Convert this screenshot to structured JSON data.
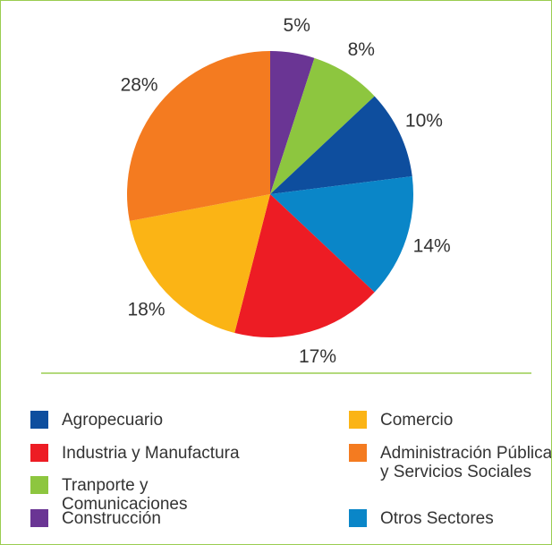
{
  "chart_data": {
    "type": "pie",
    "categories": [
      "Construcción",
      "Tranporte y Comunicaciones",
      "Agropecuario",
      "Otros Sectores",
      "Industria y Manufactura",
      "Comercio",
      "Administración Pública y Servicios Sociales"
    ],
    "values": [
      5,
      8,
      10,
      14,
      17,
      18,
      28
    ],
    "value_labels": [
      "5%",
      "8%",
      "10%",
      "14%",
      "17%",
      "18%",
      "28%"
    ],
    "colors": [
      "#6a3594",
      "#8dc63f",
      "#0e4e9e",
      "#0a86c8",
      "#ed1c24",
      "#fbb415",
      "#f47b20"
    ],
    "legend": "bottom"
  }
}
